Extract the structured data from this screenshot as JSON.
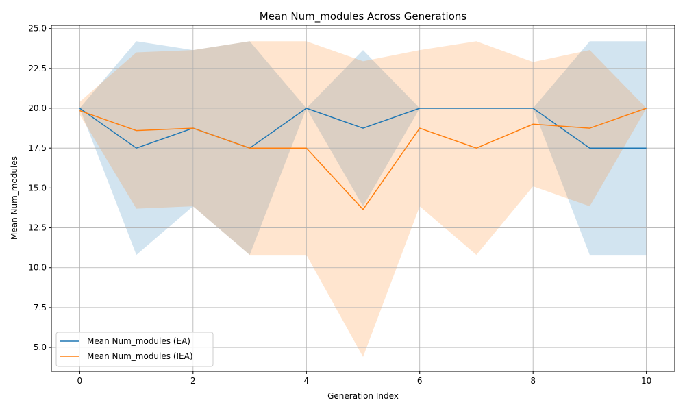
{
  "chart_data": {
    "type": "line",
    "title": "Mean Num_modules Across Generations",
    "xlabel": "Generation Index",
    "ylabel": "Mean Num_modules",
    "x": [
      0,
      1,
      2,
      3,
      4,
      5,
      6,
      7,
      8,
      9,
      10
    ],
    "xlim": [
      -0.5,
      10.5
    ],
    "ylim": [
      3.5,
      25.2
    ],
    "x_ticks": [
      0,
      2,
      4,
      6,
      8,
      10
    ],
    "y_ticks": [
      5.0,
      7.5,
      10.0,
      12.5,
      15.0,
      17.5,
      20.0,
      22.5,
      25.0
    ],
    "grid": true,
    "legend_position": "lower-left",
    "series": [
      {
        "name": "Mean Num_modules (EA)",
        "color": "#1f77b4",
        "values": [
          20.0,
          17.5,
          18.75,
          17.5,
          20.0,
          18.75,
          20.0,
          20.0,
          20.0,
          17.5,
          17.5
        ],
        "lower": [
          20.0,
          10.8,
          13.85,
          10.8,
          20.0,
          13.85,
          20.0,
          20.0,
          20.0,
          10.8,
          10.8
        ],
        "upper": [
          20.0,
          24.2,
          23.65,
          24.2,
          20.0,
          23.65,
          20.0,
          20.0,
          20.0,
          24.2,
          24.2
        ]
      },
      {
        "name": "Mean Num_modules (IEA)",
        "color": "#ff7f0e",
        "values": [
          19.85,
          18.6,
          18.75,
          17.5,
          17.5,
          13.65,
          18.75,
          17.5,
          19.0,
          18.75,
          20.0
        ],
        "lower": [
          19.6,
          13.7,
          13.85,
          10.8,
          10.8,
          4.4,
          13.85,
          10.8,
          15.1,
          13.85,
          20.0
        ],
        "upper": [
          20.4,
          23.5,
          23.65,
          24.2,
          24.2,
          22.95,
          23.65,
          24.2,
          22.9,
          23.65,
          20.0
        ]
      }
    ]
  }
}
